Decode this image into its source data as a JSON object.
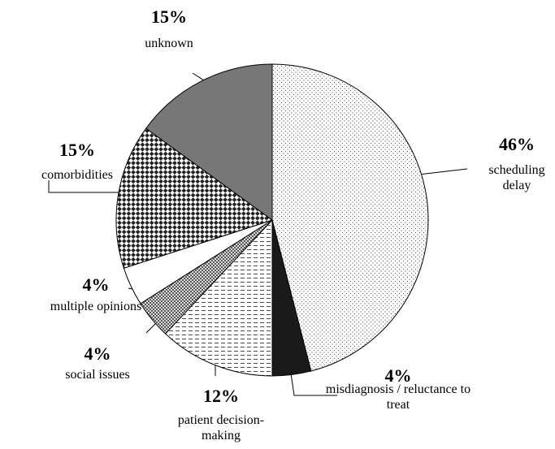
{
  "chart_data": {
    "type": "pie",
    "categories": [
      "scheduling delay",
      "misdiagnosis / reluctance to treat",
      "patient decision-making",
      "social issues",
      "multiple opinions",
      "comorbidities",
      "unknown"
    ],
    "values": [
      46,
      4,
      12,
      4,
      4,
      15,
      15
    ],
    "value_labels": [
      "46%",
      "4%",
      "12%",
      "4%",
      "4%",
      "15%",
      "15%"
    ]
  }
}
